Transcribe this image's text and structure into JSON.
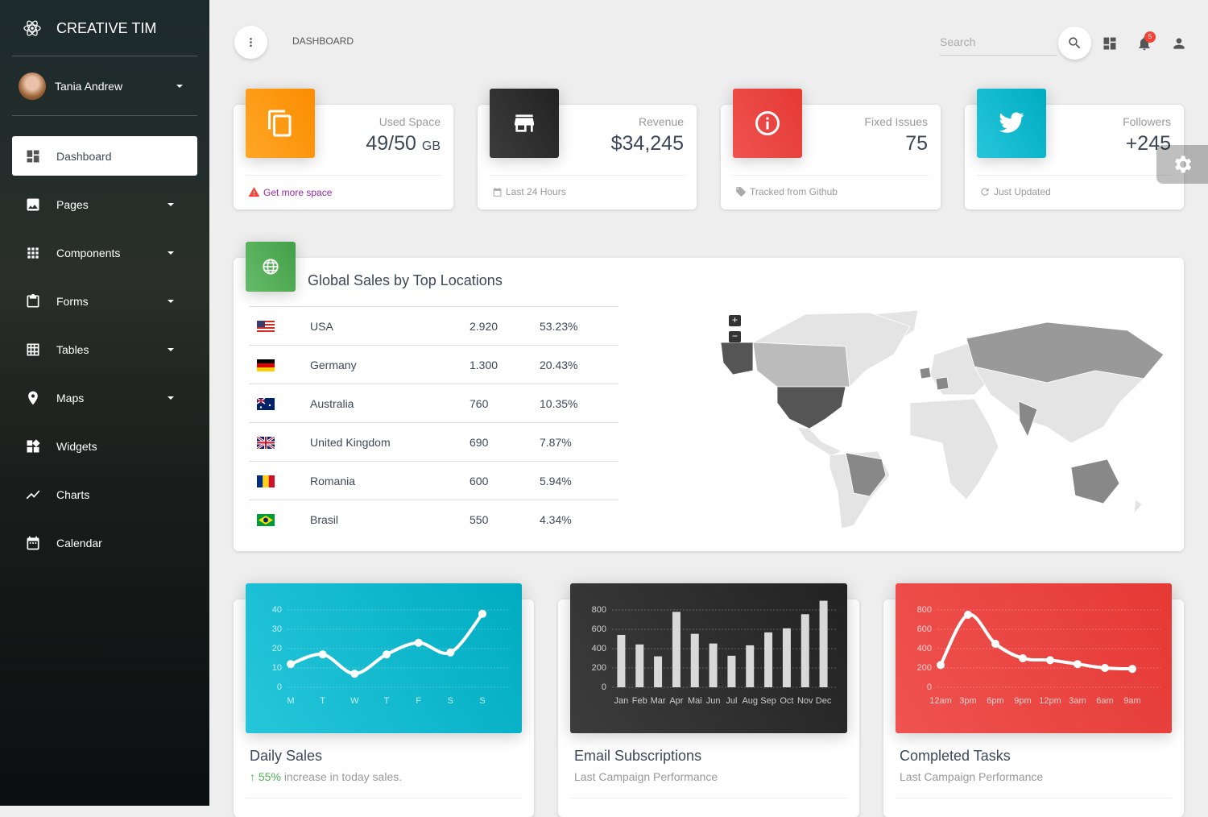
{
  "sidebar": {
    "brand": "CREATIVE TIM",
    "user": "Tania Andrew",
    "menu": [
      "Dashboard",
      "Pages",
      "Components",
      "Forms",
      "Tables",
      "Maps",
      "Widgets",
      "Charts",
      "Calendar"
    ]
  },
  "navbar": {
    "title": "DASHBOARD",
    "search_placeholder": "Search",
    "notifications": "5"
  },
  "stats": [
    {
      "title": "Used Space",
      "value": "49/50",
      "unit": "GB",
      "footer": "Get more space"
    },
    {
      "title": "Revenue",
      "value": "$34,245",
      "footer": "Last 24 Hours"
    },
    {
      "title": "Fixed Issues",
      "value": "75",
      "footer": "Tracked from Github"
    },
    {
      "title": "Followers",
      "value": "+245",
      "footer": "Just Updated"
    }
  ],
  "sales_table": {
    "title": "Global Sales by Top Locations",
    "rows": [
      [
        "USA",
        "2.920",
        "53.23%"
      ],
      [
        "Germany",
        "1.300",
        "20.43%"
      ],
      [
        "Australia",
        "760",
        "10.35%"
      ],
      [
        "United Kingdom",
        "690",
        "7.87%"
      ],
      [
        "Romania",
        "600",
        "5.94%"
      ],
      [
        "Brasil",
        "550",
        "4.34%"
      ]
    ]
  },
  "chart_data": [
    {
      "type": "line",
      "title": "Daily Sales",
      "highlight": "55%",
      "subtitle": "increase in today sales.",
      "categories": [
        "M",
        "T",
        "W",
        "T",
        "F",
        "S",
        "S"
      ],
      "values": [
        12,
        17,
        7,
        17,
        23,
        18,
        38
      ],
      "color": "#ffffff",
      "ylim": [
        0,
        40
      ],
      "yticks": [
        0,
        10,
        20,
        30,
        40
      ],
      "grid": true
    },
    {
      "type": "bar",
      "title": "Email Subscriptions",
      "subtitle": "Last Campaign Performance",
      "categories": [
        "Jan",
        "Feb",
        "Mar",
        "Apr",
        "Mai",
        "Jun",
        "Jul",
        "Aug",
        "Sep",
        "Oct",
        "Nov",
        "Dec"
      ],
      "values": [
        542,
        443,
        320,
        780,
        553,
        453,
        326,
        434,
        568,
        610,
        756,
        895
      ],
      "color": "#d9d9d9",
      "ylim": [
        0,
        900
      ],
      "yticks": [
        0,
        200,
        400,
        600,
        800
      ],
      "grid": true
    },
    {
      "type": "line",
      "title": "Completed Tasks",
      "subtitle": "Last Campaign Performance",
      "categories": [
        "12am",
        "3pm",
        "6pm",
        "9pm",
        "12pm",
        "3am",
        "6am",
        "9am"
      ],
      "values": [
        230,
        750,
        450,
        300,
        280,
        240,
        200,
        190
      ],
      "color": "#ffffff",
      "ylim": [
        0,
        900
      ],
      "yticks": [
        0,
        200,
        400,
        600,
        800
      ],
      "grid": true
    }
  ]
}
